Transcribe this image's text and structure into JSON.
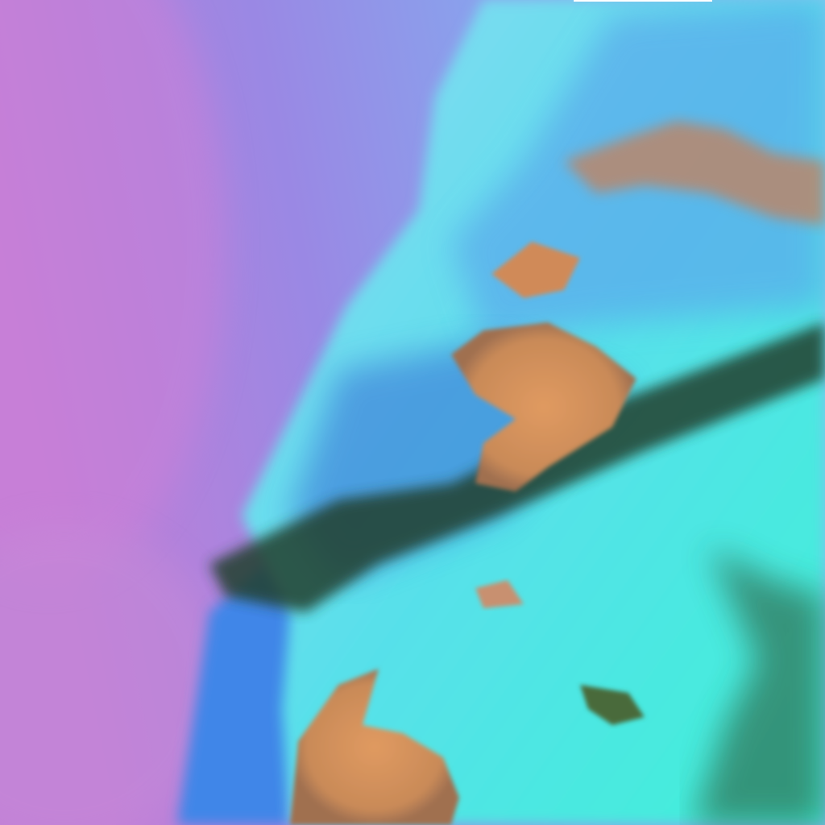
{
  "image": {
    "kind": "false-color satellite imagery",
    "colors": {
      "clear_sky_magenta": "#c77fd8",
      "clear_sky_violet": "#8f86e6",
      "ocean_blue": "#3f86e8",
      "low_cloud_cyan": "#3fe8e0",
      "high_cloud_light": "#9fe8f4",
      "land_orange": "#d9905a",
      "dark_vegetation": "#2f4a2a",
      "shadow_navy": "#1d2f6e"
    }
  }
}
